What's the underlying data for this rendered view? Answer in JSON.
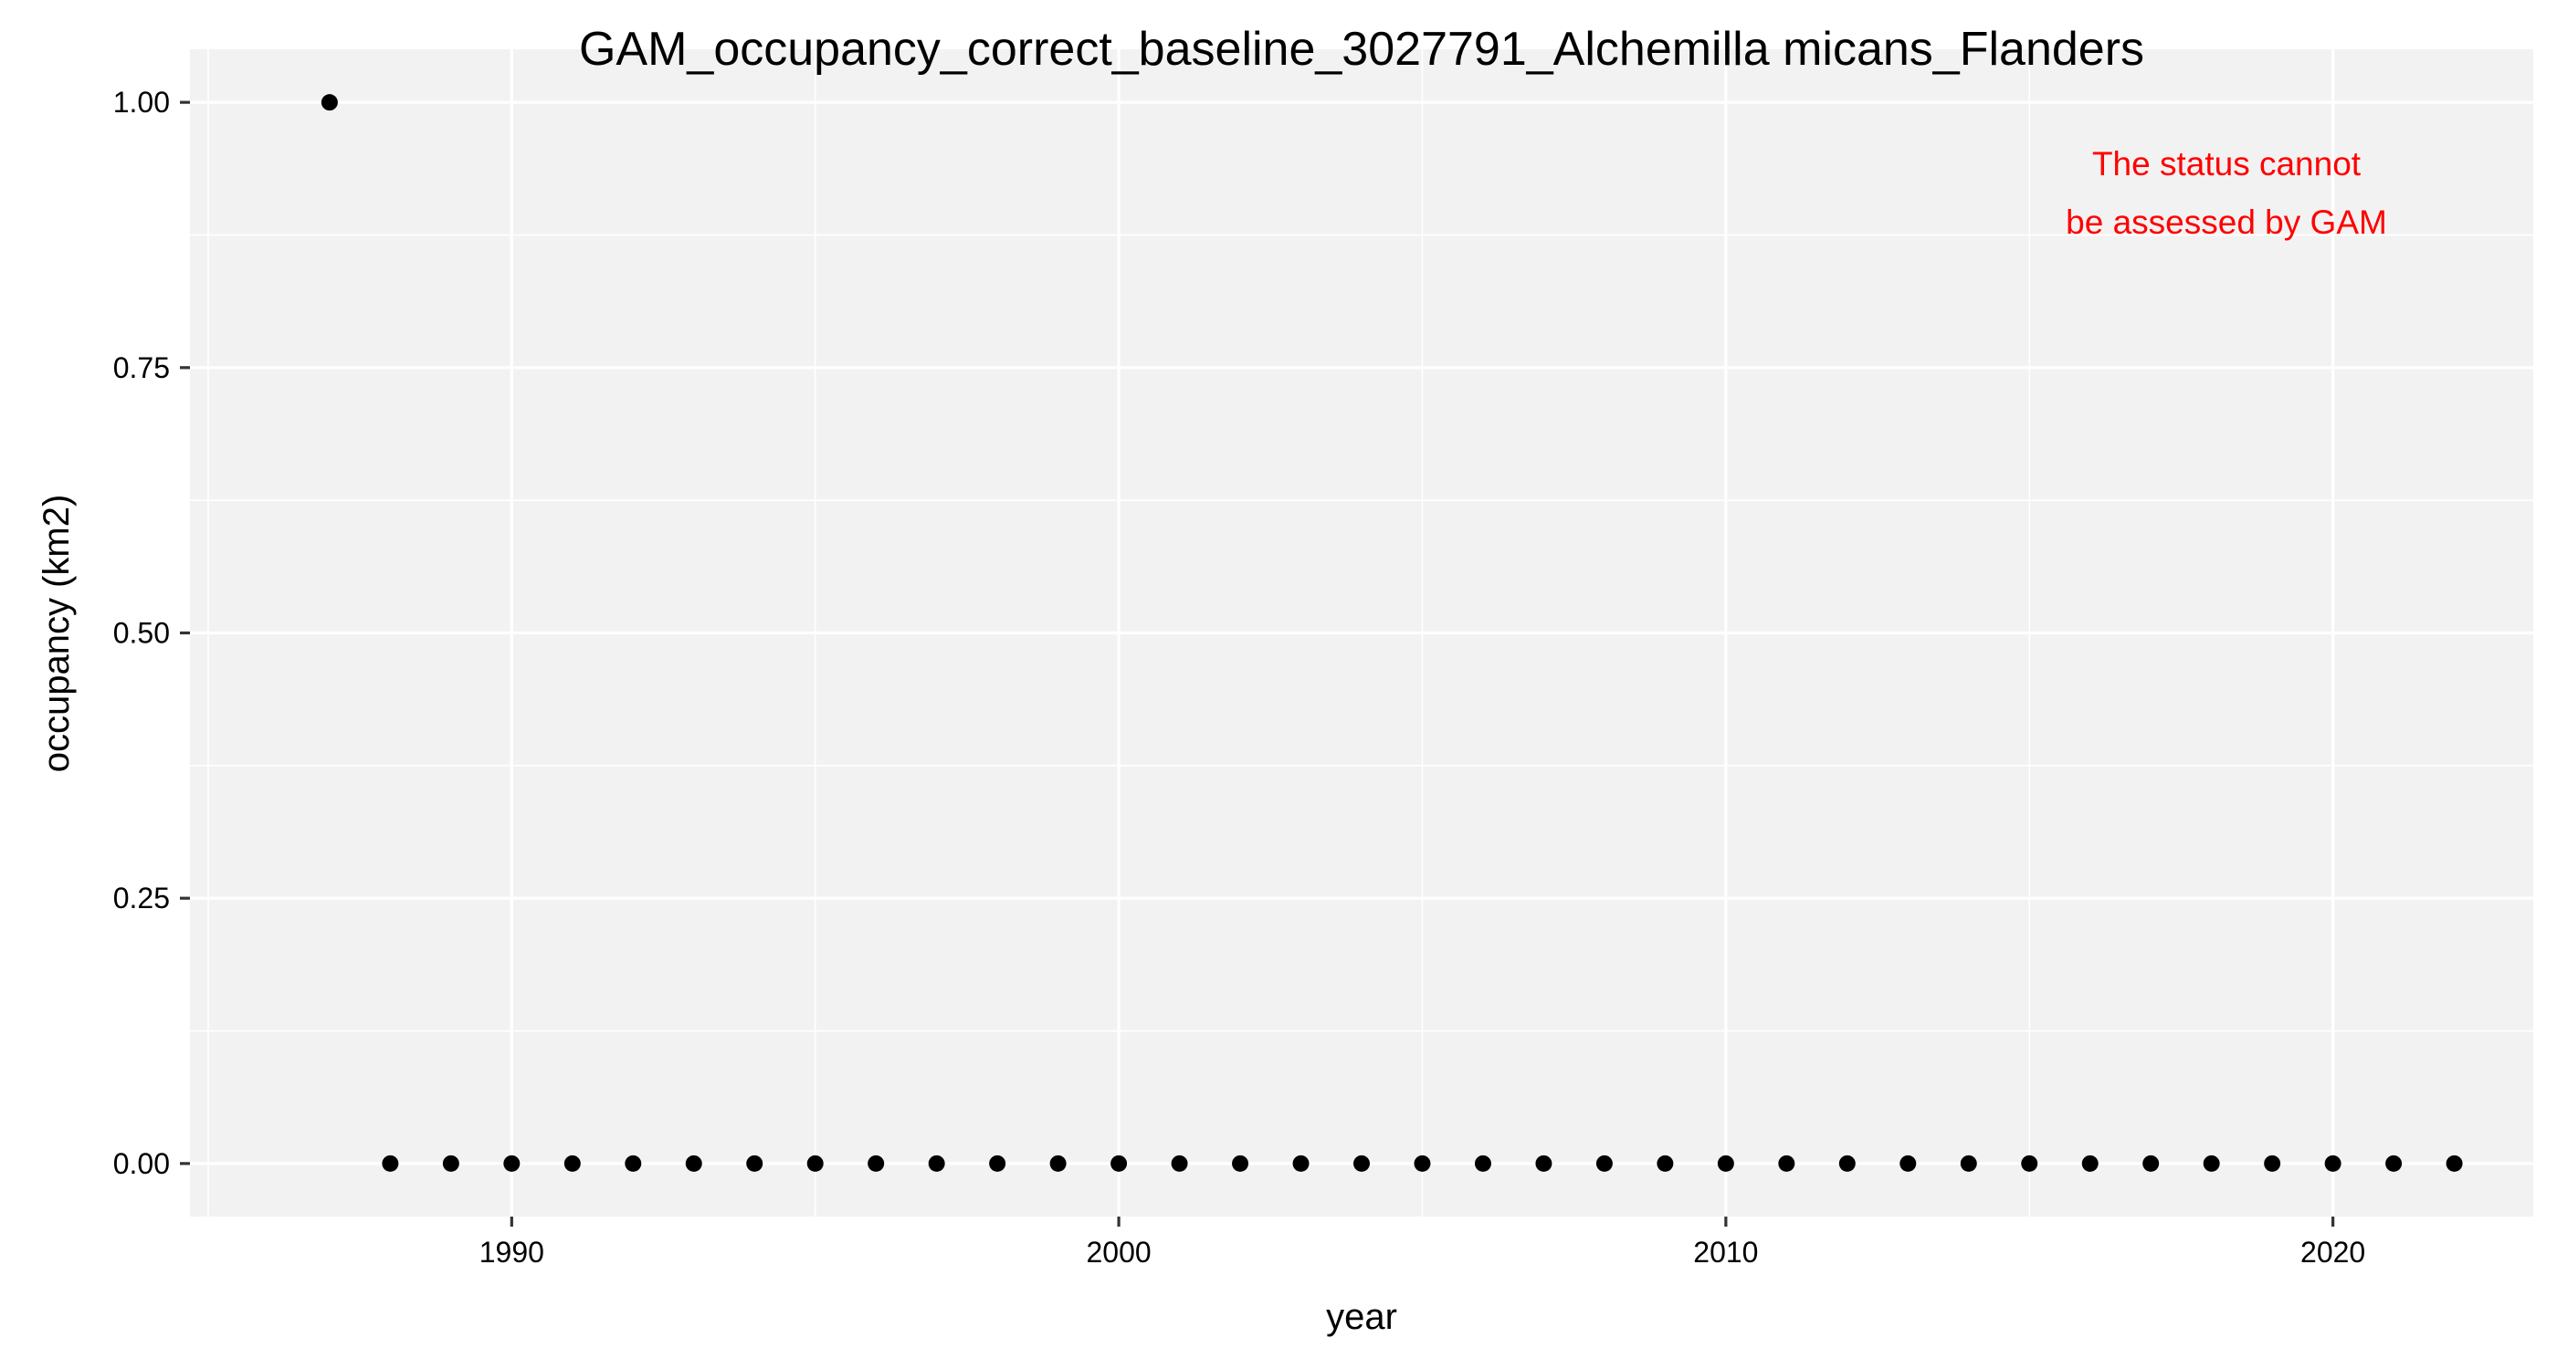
{
  "chart_data": {
    "type": "scatter",
    "title": "GAM_occupancy_correct_baseline_3027791_Alchemilla micans_Flanders",
    "xlabel": "year",
    "ylabel": "occupancy (km2)",
    "xlim": [
      1984.7,
      2023.3
    ],
    "ylim": [
      -0.05,
      1.05
    ],
    "x_ticks": [
      1990,
      2000,
      2010,
      2020
    ],
    "x_tick_labels": [
      "1990",
      "2000",
      "2010",
      "2020"
    ],
    "y_ticks": [
      0,
      0.25,
      0.5,
      0.75,
      1
    ],
    "y_tick_labels": [
      "0.00",
      "0.25",
      "0.50",
      "0.75",
      "1.00"
    ],
    "grid": true,
    "series": [
      {
        "name": "occupancy",
        "x": [
          1987,
          1988,
          1989,
          1990,
          1991,
          1992,
          1993,
          1994,
          1995,
          1996,
          1997,
          1998,
          1999,
          2000,
          2001,
          2002,
          2003,
          2004,
          2005,
          2006,
          2007,
          2008,
          2009,
          2010,
          2011,
          2012,
          2013,
          2014,
          2015,
          2016,
          2017,
          2018,
          2019,
          2020,
          2021,
          2022
        ],
        "y": [
          1,
          0,
          0,
          0,
          0,
          0,
          0,
          0,
          0,
          0,
          0,
          0,
          0,
          0,
          0,
          0,
          0,
          0,
          0,
          0,
          0,
          0,
          0,
          0,
          0,
          0,
          0,
          0,
          0,
          0,
          0,
          0,
          0,
          0,
          0,
          0
        ]
      }
    ],
    "annotation": {
      "lines": [
        "The status cannot",
        "be assessed by GAM"
      ],
      "position": "top-right"
    }
  },
  "colors": {
    "panel_background": "#f2f2f2",
    "grid": "#ffffff",
    "points": "#000000",
    "annotation": "#ff0000"
  }
}
